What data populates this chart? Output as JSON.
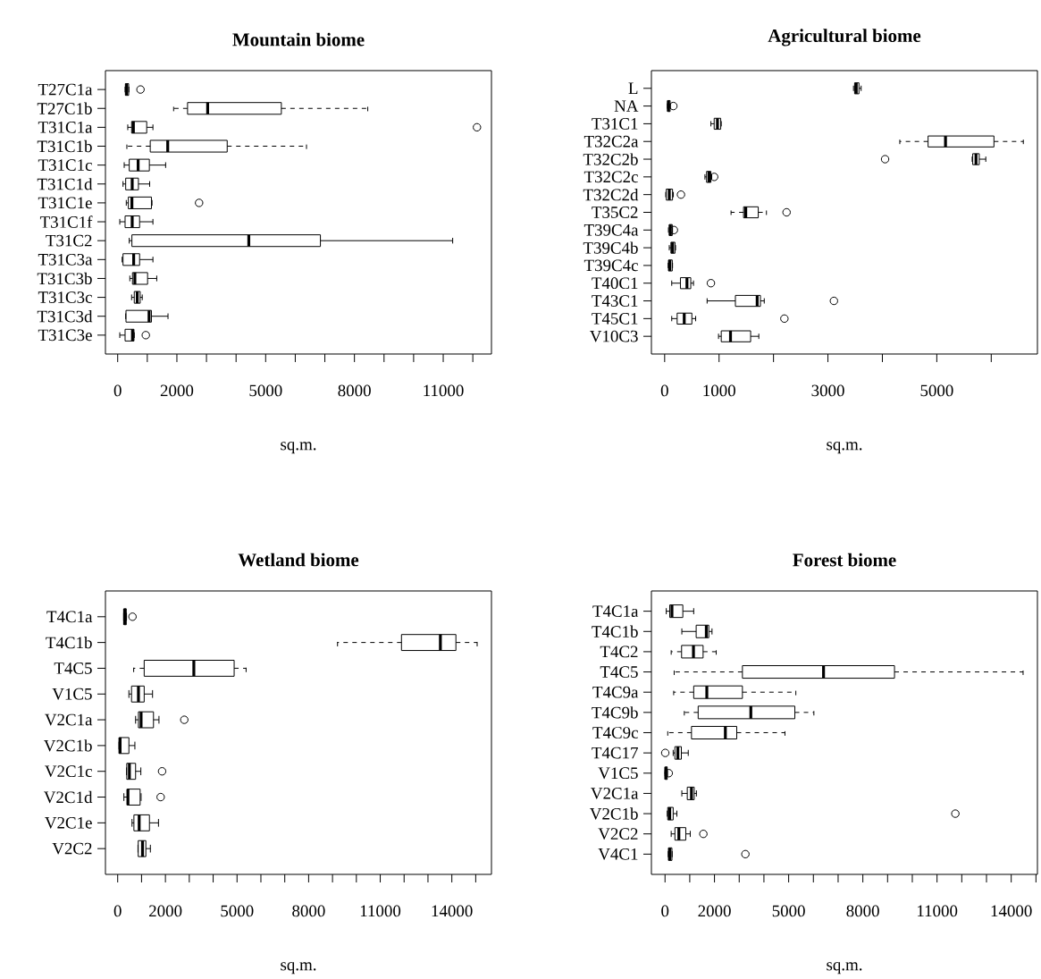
{
  "chart_data": [
    {
      "type": "box",
      "title": "Mountain biome",
      "xlabel": "sq.m.",
      "orientation": "horizontal",
      "categories": [
        "T27C1a",
        "T27C1b",
        "T31C1a",
        "T31C1b",
        "T31C1c",
        "T31C1d",
        "T31C1e",
        "T31C1f",
        "T31C2",
        "T31C3a",
        "T31C3b",
        "T31C3c",
        "T31C3d",
        "T31C3e"
      ],
      "boxes": [
        {
          "low": 250,
          "q1": 260,
          "median": 300,
          "q3": 370,
          "high": 380,
          "outliers": [
            770
          ]
        },
        {
          "low": 1890,
          "q1": 2360,
          "median": 3040,
          "q3": 5530,
          "high": 8450
        },
        {
          "low": 340,
          "q1": 470,
          "median": 530,
          "q3": 980,
          "high": 1190,
          "outliers": [
            12140
          ]
        },
        {
          "low": 310,
          "q1": 1100,
          "median": 1690,
          "q3": 3700,
          "high": 6380
        },
        {
          "low": 220,
          "q1": 390,
          "median": 690,
          "q3": 1070,
          "high": 1620
        },
        {
          "low": 180,
          "q1": 270,
          "median": 490,
          "q3": 700,
          "high": 1080
        },
        {
          "low": 290,
          "q1": 360,
          "median": 480,
          "q3": 1140,
          "high": 1160,
          "outliers": [
            2750
          ]
        },
        {
          "low": 70,
          "q1": 250,
          "median": 490,
          "q3": 740,
          "high": 1190
        },
        {
          "low": 390,
          "q1": 480,
          "median": 4430,
          "q3": 6850,
          "high": 11320
        },
        {
          "low": 150,
          "q1": 180,
          "median": 540,
          "q3": 740,
          "high": 1190
        },
        {
          "low": 410,
          "q1": 500,
          "median": 580,
          "q3": 1010,
          "high": 1320
        },
        {
          "low": 470,
          "q1": 560,
          "median": 660,
          "q3": 760,
          "high": 830
        },
        {
          "low": 270,
          "q1": 280,
          "median": 1060,
          "q3": 1140,
          "high": 1700
        },
        {
          "low": 70,
          "q1": 250,
          "median": 500,
          "q3": 550,
          "high": 560,
          "outliers": [
            950
          ]
        }
      ],
      "xlim": [
        -414,
        12630
      ],
      "xticks": [
        0,
        {
          "value": 1000,
          "label": null
        },
        2000,
        {
          "value": 3000,
          "label": null
        },
        {
          "value": 4000,
          "label": null
        },
        5000,
        {
          "value": 6000,
          "label": null
        },
        {
          "value": 7000,
          "label": null
        },
        8000,
        {
          "value": 9000,
          "label": null
        },
        {
          "value": 10000,
          "label": null
        },
        11000,
        {
          "value": 12000,
          "label": null
        }
      ]
    },
    {
      "type": "box",
      "title": "Agricultural biome",
      "xlabel": "sq.m.",
      "orientation": "horizontal",
      "categories": [
        "L",
        "NA",
        "T31C1",
        "T32C2a",
        "T32C2b",
        "T32C2c",
        "T32C2d",
        "T35C2",
        "T39C4a",
        "T39C4b",
        "T39C4c",
        "T40C1",
        "T43C1",
        "T45C1",
        "V10C3"
      ],
      "boxes": [
        {
          "low": 3470,
          "q1": 3490,
          "median": 3520,
          "q3": 3570,
          "high": 3610
        },
        {
          "low": 50,
          "q1": 55,
          "median": 70,
          "q3": 100,
          "high": 105,
          "outliers": [
            160
          ]
        },
        {
          "low": 850,
          "q1": 910,
          "median": 970,
          "q3": 1030,
          "high": 1040
        },
        {
          "low": 4320,
          "q1": 4840,
          "median": 5160,
          "q3": 6050,
          "high": 6590
        },
        {
          "low": 5650,
          "q1": 5660,
          "median": 5720,
          "q3": 5780,
          "high": 5900,
          "outliers": [
            4050
          ]
        },
        {
          "low": 740,
          "q1": 770,
          "median": 815,
          "q3": 850,
          "high": 865,
          "outliers": [
            910
          ]
        },
        {
          "low": 20,
          "q1": 30,
          "median": 85,
          "q3": 145,
          "high": 160,
          "outliers": [
            300
          ]
        },
        {
          "low": 1220,
          "q1": 1450,
          "median": 1490,
          "q3": 1720,
          "high": 1870,
          "outliers": [
            2240
          ]
        },
        {
          "low": 70,
          "q1": 85,
          "median": 105,
          "q3": 140,
          "high": 145,
          "outliers": [
            170
          ]
        },
        {
          "low": 85,
          "q1": 115,
          "median": 145,
          "q3": 190,
          "high": 200
        },
        {
          "low": 65,
          "q1": 70,
          "median": 95,
          "q3": 140,
          "high": 145
        },
        {
          "low": 130,
          "q1": 290,
          "median": 410,
          "q3": 480,
          "high": 530,
          "outliers": [
            850
          ]
        },
        {
          "low": 780,
          "q1": 1300,
          "median": 1700,
          "q3": 1760,
          "high": 1830,
          "outliers": [
            3110
          ]
        },
        {
          "low": 130,
          "q1": 230,
          "median": 360,
          "q3": 500,
          "high": 570,
          "outliers": [
            2200
          ]
        },
        {
          "low": 990,
          "q1": 1040,
          "median": 1210,
          "q3": 1580,
          "high": 1730
        }
      ],
      "xlim": [
        -243,
        6849
      ],
      "xticks": [
        0,
        1000,
        {
          "value": 2000,
          "label": null
        },
        3000,
        {
          "value": 4000,
          "label": null
        },
        5000,
        {
          "value": 6000,
          "label": null
        }
      ]
    },
    {
      "type": "box",
      "title": "Wetland biome",
      "xlabel": "sq.m.",
      "orientation": "horizontal",
      "categories": [
        "T4C1a",
        "T4C1b",
        "T4C5",
        "V1C5",
        "V2C1a",
        "V2C1b",
        "V2C1c",
        "V2C1d",
        "V2C1e",
        "V2C2"
      ],
      "boxes": [
        {
          "low": 250,
          "q1": 260,
          "median": 290,
          "q3": 360,
          "high": 370,
          "outliers": [
            620
          ]
        },
        {
          "low": 9210,
          "q1": 11890,
          "median": 13520,
          "q3": 14170,
          "high": 15060
        },
        {
          "low": 670,
          "q1": 1110,
          "median": 3190,
          "q3": 4880,
          "high": 5380
        },
        {
          "low": 470,
          "q1": 580,
          "median": 870,
          "q3": 1110,
          "high": 1460
        },
        {
          "low": 750,
          "q1": 870,
          "median": 980,
          "q3": 1500,
          "high": 1730,
          "outliers": [
            2790
          ]
        },
        {
          "low": 55,
          "q1": 60,
          "median": 100,
          "q3": 470,
          "high": 720
        },
        {
          "low": 370,
          "q1": 380,
          "median": 490,
          "q3": 750,
          "high": 970,
          "outliers": [
            1860
          ]
        },
        {
          "low": 260,
          "q1": 400,
          "median": 430,
          "q3": 940,
          "high": 980,
          "outliers": [
            1800
          ]
        },
        {
          "low": 600,
          "q1": 680,
          "median": 900,
          "q3": 1330,
          "high": 1710
        },
        {
          "low": 850,
          "q1": 860,
          "median": 1040,
          "q3": 1180,
          "high": 1370
        }
      ],
      "xlim": [
        -513,
        15660
      ],
      "xticks": [
        0,
        {
          "value": 1000,
          "label": null
        },
        2000,
        {
          "value": 3000,
          "label": null
        },
        {
          "value": 4000,
          "label": null
        },
        5000,
        {
          "value": 6000,
          "label": null
        },
        {
          "value": 7000,
          "label": null
        },
        8000,
        {
          "value": 9000,
          "label": null
        },
        {
          "value": 10000,
          "label": null
        },
        11000,
        {
          "value": 12000,
          "label": null
        },
        {
          "value": 13000,
          "label": null
        },
        14000,
        {
          "value": 15000,
          "label": null
        }
      ]
    },
    {
      "type": "box",
      "title": "Forest biome",
      "xlabel": "sq.m.",
      "orientation": "horizontal",
      "categories": [
        "T4C1a",
        "T4C1b",
        "T4C2",
        "T4C5",
        "T4C9a",
        "T4C9b",
        "T4C9c",
        "T4C17",
        "V1C5",
        "V2C1a",
        "V2C1b",
        "V2C2",
        "V4C1"
      ],
      "boxes": [
        {
          "low": 50,
          "q1": 190,
          "median": 280,
          "q3": 720,
          "high": 1160
        },
        {
          "low": 680,
          "q1": 1260,
          "median": 1670,
          "q3": 1770,
          "high": 1900
        },
        {
          "low": 250,
          "q1": 670,
          "median": 1150,
          "q3": 1540,
          "high": 2070
        },
        {
          "low": 370,
          "q1": 3130,
          "median": 6410,
          "q3": 9280,
          "high": 14480
        },
        {
          "low": 350,
          "q1": 1160,
          "median": 1690,
          "q3": 3130,
          "high": 5290
        },
        {
          "low": 780,
          "q1": 1340,
          "median": 3470,
          "q3": 5250,
          "high": 6020
        },
        {
          "low": 110,
          "q1": 1070,
          "median": 2440,
          "q3": 2900,
          "high": 4850
        },
        {
          "low": 330,
          "q1": 400,
          "median": 520,
          "q3": 660,
          "high": 940,
          "outliers": [
            10
          ]
        },
        {
          "low": 0,
          "q1": 10,
          "median": 30,
          "q3": 90,
          "high": 100,
          "outliers": [
            150
          ]
        },
        {
          "low": 680,
          "q1": 900,
          "median": 1070,
          "q3": 1180,
          "high": 1270
        },
        {
          "low": 90,
          "q1": 110,
          "median": 190,
          "q3": 330,
          "high": 480,
          "outliers": [
            11740
          ]
        },
        {
          "low": 250,
          "q1": 400,
          "median": 560,
          "q3": 840,
          "high": 1020,
          "outliers": [
            1550
          ]
        },
        {
          "low": 130,
          "q1": 140,
          "median": 190,
          "q3": 280,
          "high": 290,
          "outliers": [
            3250
          ]
        }
      ],
      "xlim": [
        -550,
        15060
      ],
      "xticks": [
        0,
        {
          "value": 1000,
          "label": null
        },
        2000,
        {
          "value": 3000,
          "label": null
        },
        {
          "value": 4000,
          "label": null
        },
        5000,
        {
          "value": 6000,
          "label": null
        },
        {
          "value": 7000,
          "label": null
        },
        8000,
        {
          "value": 9000,
          "label": null
        },
        {
          "value": 10000,
          "label": null
        },
        11000,
        {
          "value": 12000,
          "label": null
        },
        {
          "value": 13000,
          "label": null
        },
        14000,
        {
          "value": 15000,
          "label": null
        }
      ]
    }
  ]
}
